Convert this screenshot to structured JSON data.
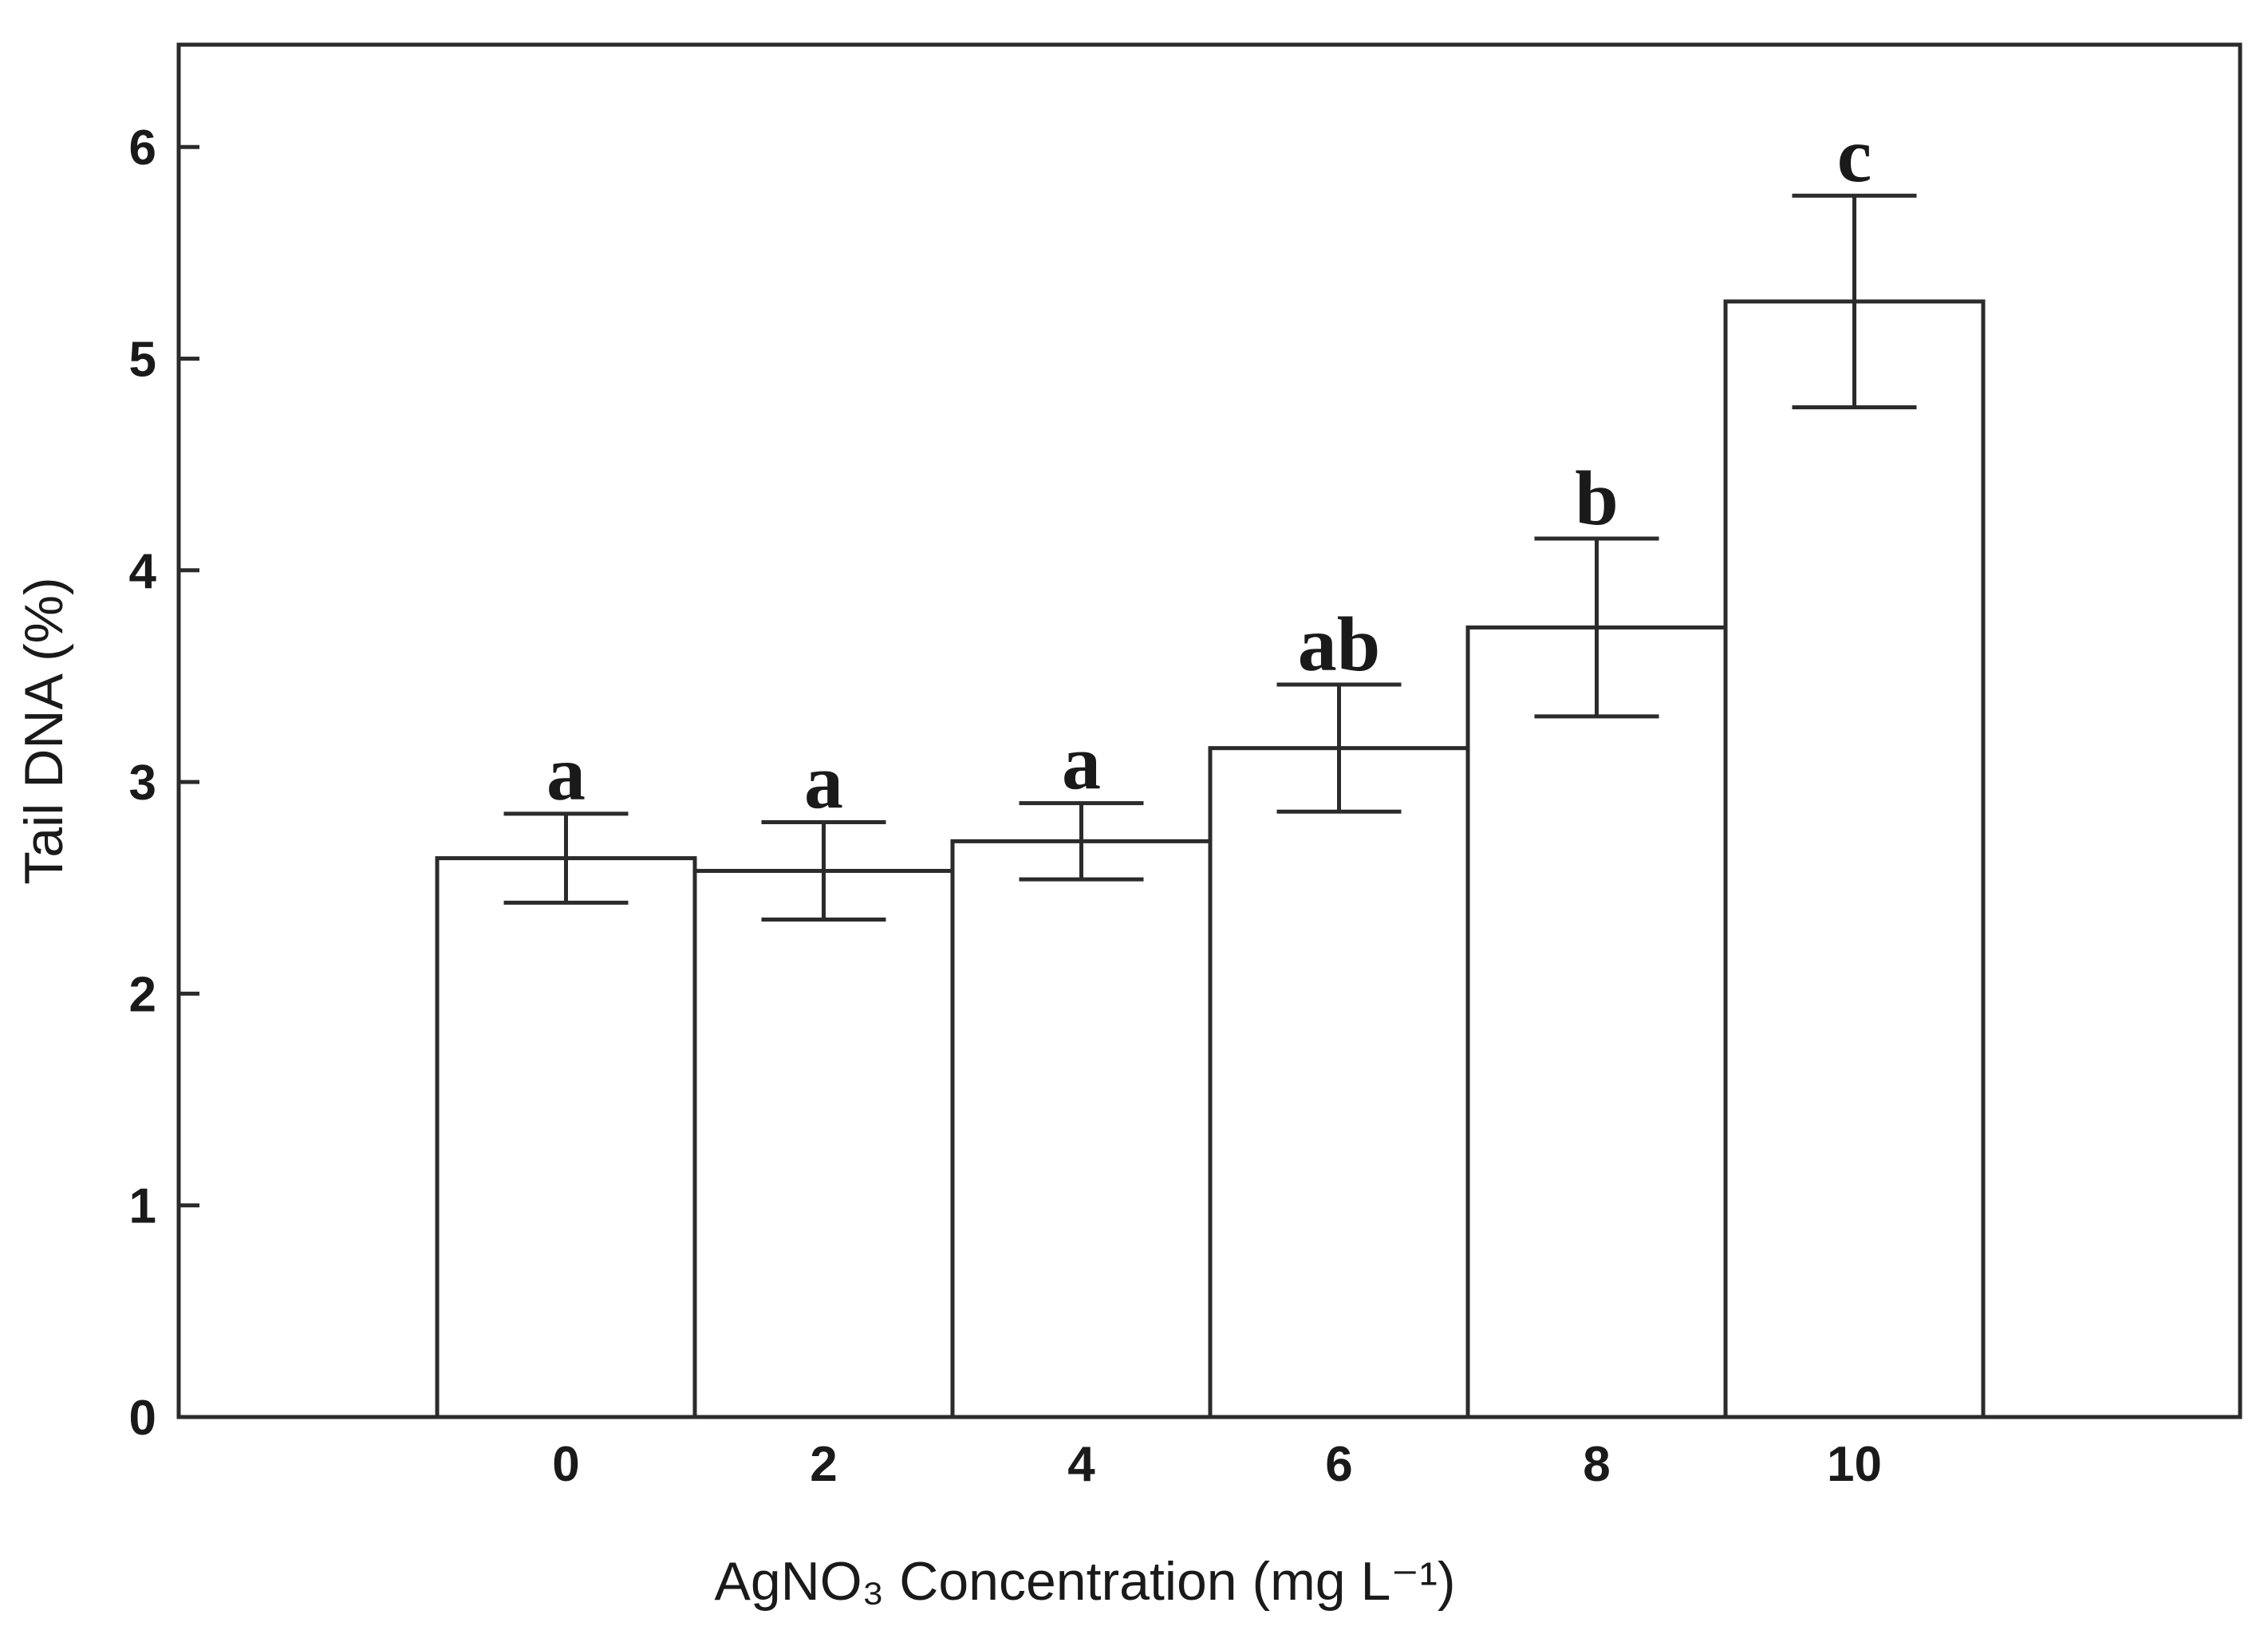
{
  "chart_data": {
    "type": "bar",
    "title": "",
    "xlabel": "AgNO₃ Concentration (mg L⁻¹)",
    "ylabel": "Tail DNA (%)",
    "categories": [
      "0",
      "2",
      "4",
      "6",
      "8",
      "10"
    ],
    "values": [
      2.64,
      2.58,
      2.72,
      3.16,
      3.73,
      5.27
    ],
    "errors": [
      0.21,
      0.23,
      0.18,
      0.3,
      0.42,
      0.5
    ],
    "significance": [
      "a",
      "a",
      "a",
      "ab",
      "b",
      "c"
    ],
    "ylim": [
      0,
      6.5
    ],
    "yticks": [
      0,
      1,
      2,
      3,
      4,
      5,
      6
    ],
    "grid": false,
    "legend": null,
    "colors": {
      "bar_fill": "#ffffff",
      "bar_stroke": "#2b2b2b",
      "axis": "#2b2b2b",
      "text": "#1a1a1a"
    }
  }
}
